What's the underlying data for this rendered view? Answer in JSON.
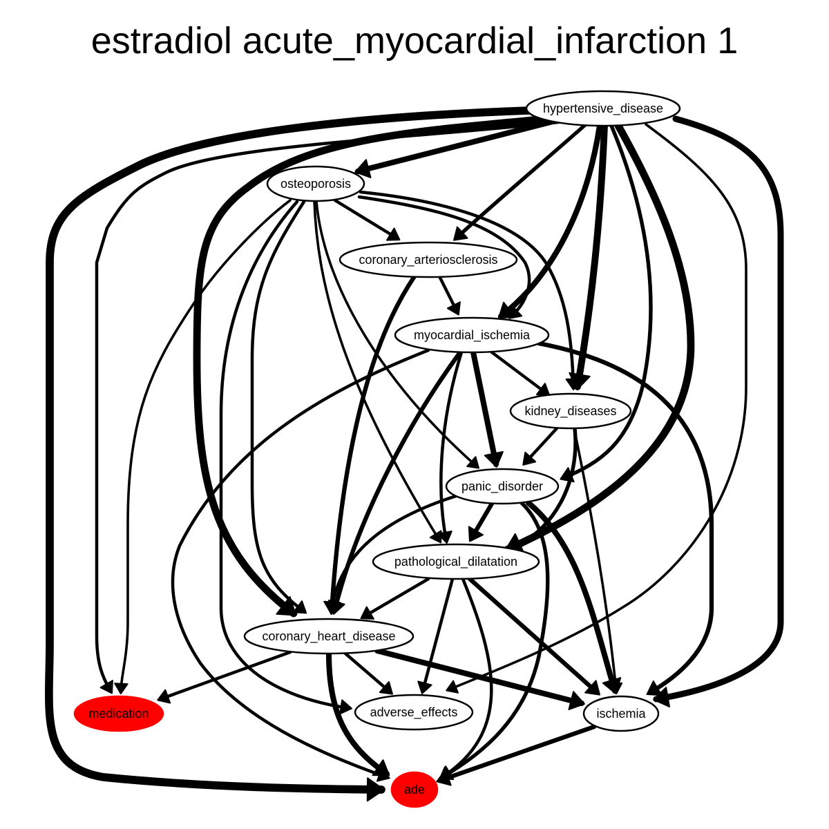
{
  "title": "estradiol acute_myocardial_infarction 1",
  "colors": {
    "highlight": "#ff0000",
    "node_fill": "#ffffff",
    "edge": "#000000"
  },
  "nodes": [
    {
      "id": "hypertensive_disease",
      "label": "hypertensive_disease",
      "highlighted": false
    },
    {
      "id": "osteoporosis",
      "label": "osteoporosis",
      "highlighted": false
    },
    {
      "id": "coronary_arteriosclerosis",
      "label": "coronary_arteriosclerosis",
      "highlighted": false
    },
    {
      "id": "myocardial_ischemia",
      "label": "myocardial_ischemia",
      "highlighted": false
    },
    {
      "id": "kidney_diseases",
      "label": "kidney_diseases",
      "highlighted": false
    },
    {
      "id": "panic_disorder",
      "label": "panic_disorder",
      "highlighted": false
    },
    {
      "id": "pathological_dilatation",
      "label": "pathological_dilatation",
      "highlighted": false
    },
    {
      "id": "coronary_heart_disease",
      "label": "coronary_heart_disease",
      "highlighted": false
    },
    {
      "id": "medication",
      "label": "medication",
      "highlighted": true
    },
    {
      "id": "adverse_effects",
      "label": "adverse_effects",
      "highlighted": false
    },
    {
      "id": "ischemia",
      "label": "ischemia",
      "highlighted": false
    },
    {
      "id": "ade",
      "label": "ade",
      "highlighted": true
    }
  ],
  "edges": [
    {
      "from": "hypertensive_disease",
      "to": "osteoporosis",
      "weight": 9
    },
    {
      "from": "hypertensive_disease",
      "to": "coronary_arteriosclerosis",
      "weight": 6
    },
    {
      "from": "hypertensive_disease",
      "to": "myocardial_ischemia",
      "weight": 9
    },
    {
      "from": "hypertensive_disease",
      "to": "kidney_diseases",
      "weight": 11
    },
    {
      "from": "hypertensive_disease",
      "to": "panic_disorder",
      "weight": 6
    },
    {
      "from": "hypertensive_disease",
      "to": "pathological_dilatation",
      "weight": 12
    },
    {
      "from": "hypertensive_disease",
      "to": "coronary_heart_disease",
      "weight": 12
    },
    {
      "from": "hypertensive_disease",
      "to": "medication",
      "weight": 5
    },
    {
      "from": "hypertensive_disease",
      "to": "adverse_effects",
      "weight": 4
    },
    {
      "from": "hypertensive_disease",
      "to": "ischemia",
      "weight": 10
    },
    {
      "from": "hypertensive_disease",
      "to": "ade",
      "weight": 13
    },
    {
      "from": "osteoporosis",
      "to": "coronary_arteriosclerosis",
      "weight": 5
    },
    {
      "from": "osteoporosis",
      "to": "myocardial_ischemia",
      "weight": 5
    },
    {
      "from": "osteoporosis",
      "to": "kidney_diseases",
      "weight": 5
    },
    {
      "from": "osteoporosis",
      "to": "panic_disorder",
      "weight": 4
    },
    {
      "from": "osteoporosis",
      "to": "pathological_dilatation",
      "weight": 4
    },
    {
      "from": "osteoporosis",
      "to": "coronary_heart_disease",
      "weight": 5
    },
    {
      "from": "osteoporosis",
      "to": "medication",
      "weight": 4
    },
    {
      "from": "osteoporosis",
      "to": "adverse_effects",
      "weight": 5
    },
    {
      "from": "coronary_arteriosclerosis",
      "to": "myocardial_ischemia",
      "weight": 5
    },
    {
      "from": "coronary_arteriosclerosis",
      "to": "coronary_heart_disease",
      "weight": 7
    },
    {
      "from": "myocardial_ischemia",
      "to": "kidney_diseases",
      "weight": 5
    },
    {
      "from": "myocardial_ischemia",
      "to": "panic_disorder",
      "weight": 9
    },
    {
      "from": "myocardial_ischemia",
      "to": "pathological_dilatation",
      "weight": 5
    },
    {
      "from": "myocardial_ischemia",
      "to": "coronary_heart_disease",
      "weight": 7
    },
    {
      "from": "myocardial_ischemia",
      "to": "ischemia",
      "weight": 7
    },
    {
      "from": "myocardial_ischemia",
      "to": "ade",
      "weight": 5
    },
    {
      "from": "kidney_diseases",
      "to": "panic_disorder",
      "weight": 5
    },
    {
      "from": "kidney_diseases",
      "to": "pathological_dilatation",
      "weight": 6
    },
    {
      "from": "kidney_diseases",
      "to": "ischemia",
      "weight": 4
    },
    {
      "from": "panic_disorder",
      "to": "pathological_dilatation",
      "weight": 7
    },
    {
      "from": "panic_disorder",
      "to": "coronary_heart_disease",
      "weight": 5
    },
    {
      "from": "panic_disorder",
      "to": "ischemia",
      "weight": 9
    },
    {
      "from": "panic_disorder",
      "to": "ade",
      "weight": 6
    },
    {
      "from": "pathological_dilatation",
      "to": "coronary_heart_disease",
      "weight": 5
    },
    {
      "from": "pathological_dilatation",
      "to": "adverse_effects",
      "weight": 5
    },
    {
      "from": "pathological_dilatation",
      "to": "ischemia",
      "weight": 7
    },
    {
      "from": "pathological_dilatation",
      "to": "ade",
      "weight": 5
    },
    {
      "from": "coronary_heart_disease",
      "to": "medication",
      "weight": 5
    },
    {
      "from": "coronary_heart_disease",
      "to": "adverse_effects",
      "weight": 5
    },
    {
      "from": "coronary_heart_disease",
      "to": "ischemia",
      "weight": 9
    },
    {
      "from": "coronary_heart_disease",
      "to": "ade",
      "weight": 9
    },
    {
      "from": "ischemia",
      "to": "ade",
      "weight": 7
    }
  ]
}
